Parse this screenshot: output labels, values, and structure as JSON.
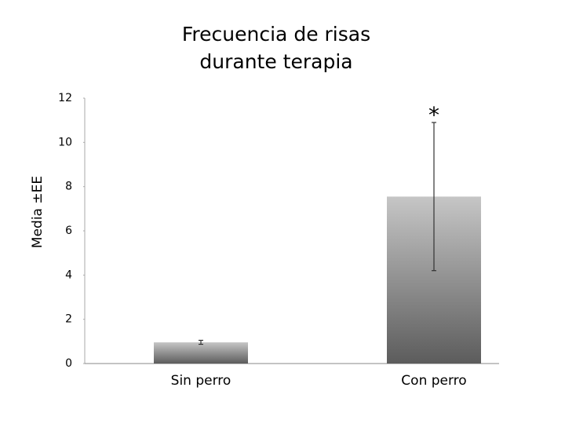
{
  "chart_data": {
    "type": "bar",
    "title": [
      "Frecuencia de risas",
      "durante terapia"
    ],
    "y_label": "Media ±EE",
    "categories": [
      "Sin perro",
      "Con perro"
    ],
    "values": [
      0.96,
      7.55
    ],
    "errors": [
      0.09,
      3.35
    ],
    "gradient": [
      "#c6c6c6",
      "#5c5c5c"
    ],
    "ylim": [
      0,
      12
    ],
    "yticks": [
      0,
      2,
      4,
      6,
      8,
      10,
      12
    ],
    "annotations": [
      {
        "text": "*",
        "category": "Con perro"
      }
    ]
  }
}
